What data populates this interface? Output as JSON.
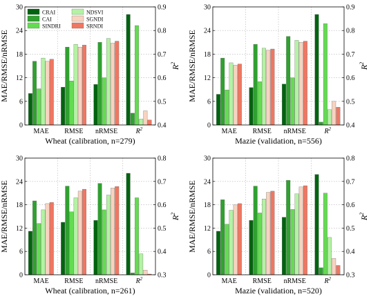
{
  "colors": {
    "CRAI": "#00630f",
    "CAI": "#2fa12f",
    "SINDRI": "#64db52",
    "NDSVI": "#b4f2a4",
    "SGNDI": "#f7d3c0",
    "SRNDI": "#ef7762",
    "grid": "#b0b0b0"
  },
  "legend": {
    "placement": "top-left, two columns",
    "entries": [
      "CRAI",
      "CAI",
      "SINDRI",
      "NDSVI",
      "SGNDI",
      "SRNDI"
    ]
  },
  "chart_data": [
    {
      "type": "bar",
      "title": "Wheat (calibration, n=279)",
      "ylabel": "MAE/RMSE/nRMSE",
      "y2label": "R²",
      "categories": [
        "MAE",
        "RMSE",
        "nRMSE",
        "R²"
      ],
      "left_axis": {
        "ylim": [
          0,
          30
        ],
        "ticks": [
          0,
          6,
          12,
          18,
          24,
          30
        ]
      },
      "right_axis": {
        "ylim": [
          0.4,
          0.9
        ],
        "ticks": [
          0.4,
          0.5,
          0.6,
          0.7,
          0.8,
          0.9
        ]
      },
      "grid": true,
      "series": [
        {
          "name": "CRAI",
          "values": [
            8.0,
            9.6,
            10.3,
            0.868
          ]
        },
        {
          "name": "CAI",
          "values": [
            16.2,
            19.8,
            21.0,
            0.45
          ]
        },
        {
          "name": "SINDRI",
          "values": [
            9.2,
            11.2,
            12.0,
            0.821
          ]
        },
        {
          "name": "NDSVI",
          "values": [
            17.0,
            20.5,
            22.0,
            0.425
          ]
        },
        {
          "name": "SGNDI",
          "values": [
            16.2,
            19.8,
            20.8,
            0.46
          ]
        },
        {
          "name": "SRNDI",
          "values": [
            16.7,
            20.3,
            21.3,
            0.421
          ]
        }
      ]
    },
    {
      "type": "bar",
      "title": "Mazie (validation, n=556)",
      "ylabel": "MAE/RMSE/nRMSE",
      "y2label": "R²",
      "categories": [
        "MAE",
        "RMSE",
        "nRMSE",
        "R²"
      ],
      "left_axis": {
        "ylim": [
          0,
          30
        ],
        "ticks": [
          0,
          6,
          12,
          18,
          24,
          30
        ]
      },
      "right_axis": {
        "ylim": [
          0.4,
          0.9
        ],
        "ticks": [
          0.4,
          0.5,
          0.6,
          0.7,
          0.8,
          0.9
        ]
      },
      "grid": true,
      "series": [
        {
          "name": "CRAI",
          "values": [
            7.8,
            9.5,
            10.4,
            0.868
          ]
        },
        {
          "name": "CAI",
          "values": [
            17.0,
            20.5,
            22.5,
            0.412
          ]
        },
        {
          "name": "SINDRI",
          "values": [
            8.9,
            11.0,
            12.0,
            0.829
          ]
        },
        {
          "name": "NDSVI",
          "values": [
            15.8,
            19.5,
            21.5,
            0.465
          ]
        },
        {
          "name": "SGNDI",
          "values": [
            15.2,
            19.0,
            21.0,
            0.5
          ]
        },
        {
          "name": "SRNDI",
          "values": [
            15.5,
            19.3,
            21.3,
            0.475
          ]
        }
      ]
    },
    {
      "type": "bar",
      "title": "Wheat (calibration, n=261)",
      "ylabel": "MAE/RMSE/nRMSE",
      "y2label": "R²",
      "categories": [
        "MAE",
        "RMSE",
        "nRMSE",
        "R²"
      ],
      "left_axis": {
        "ylim": [
          0,
          30
        ],
        "ticks": [
          0,
          6,
          12,
          18,
          24,
          30
        ]
      },
      "right_axis": {
        "ylim": [
          0.3,
          0.8
        ],
        "ticks": [
          0.3,
          0.4,
          0.5,
          0.6,
          0.7,
          0.8
        ]
      },
      "grid": true,
      "series": [
        {
          "name": "CRAI",
          "values": [
            11.2,
            13.5,
            14.0,
            0.735
          ]
        },
        {
          "name": "CAI",
          "values": [
            19.0,
            22.8,
            23.5,
            0.308
          ]
        },
        {
          "name": "SINDRI",
          "values": [
            13.2,
            16.2,
            16.7,
            0.63
          ]
        },
        {
          "name": "NDSVI",
          "values": [
            16.7,
            19.8,
            20.5,
            0.39
          ]
        },
        {
          "name": "SGNDI",
          "values": [
            18.3,
            21.5,
            22.3,
            0.32
          ]
        },
        {
          "name": "SRNDI",
          "values": [
            18.6,
            22.0,
            22.7,
            0.303
          ]
        }
      ]
    },
    {
      "type": "bar",
      "title": "Mazie (validation, n=520)",
      "ylabel": "MAE/RMSE/nRMSE",
      "y2label": "R²",
      "categories": [
        "MAE",
        "RMSE",
        "nRMSE",
        "R²"
      ],
      "left_axis": {
        "ylim": [
          0,
          30
        ],
        "ticks": [
          0,
          6,
          12,
          18,
          24,
          30
        ]
      },
      "right_axis": {
        "ylim": [
          0.3,
          0.8
        ],
        "ticks": [
          0.3,
          0.4,
          0.5,
          0.6,
          0.7,
          0.8
        ]
      },
      "grid": true,
      "series": [
        {
          "name": "CRAI",
          "values": [
            11.2,
            14.0,
            14.8,
            0.73
          ]
        },
        {
          "name": "CAI",
          "values": [
            19.3,
            22.8,
            24.3,
            0.33
          ]
        },
        {
          "name": "SINDRI",
          "values": [
            13.0,
            15.9,
            16.8,
            0.65
          ]
        },
        {
          "name": "NDSVI",
          "values": [
            16.6,
            19.5,
            20.8,
            0.46
          ]
        },
        {
          "name": "SGNDI",
          "values": [
            18.0,
            21.2,
            22.6,
            0.37
          ]
        },
        {
          "name": "SRNDI",
          "values": [
            18.3,
            21.5,
            22.9,
            0.34
          ]
        }
      ]
    }
  ]
}
